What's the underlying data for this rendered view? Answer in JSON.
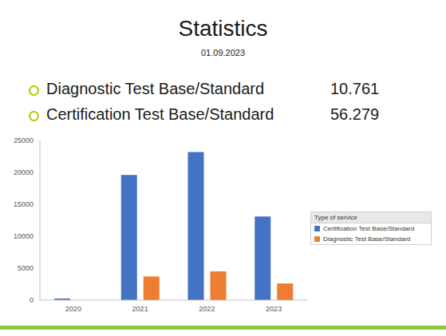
{
  "header": {
    "title": "Statistics",
    "date": "01.09.2023"
  },
  "bullets": [
    {
      "label": "Diagnostic Test Base/Standard",
      "value": "10.761"
    },
    {
      "label": "Certification Test Base/Standard",
      "value": "56.279"
    }
  ],
  "chart_data": {
    "type": "bar",
    "categories": [
      "2020",
      "2021",
      "2022",
      "2023"
    ],
    "series": [
      {
        "name": "Certification Test Base/Standard",
        "color": "#4472c4",
        "values": [
          250,
          19600,
          23200,
          13100
        ]
      },
      {
        "name": "Diagnostic Test Base/Standard",
        "color": "#ed7d31",
        "values": [
          null,
          3700,
          4500,
          2600
        ]
      }
    ],
    "ylim": [
      0,
      25000
    ],
    "yticks": [
      0,
      5000,
      10000,
      15000,
      20000,
      25000
    ],
    "grid": false,
    "legend": "right",
    "legend_title": "Type of service"
  }
}
